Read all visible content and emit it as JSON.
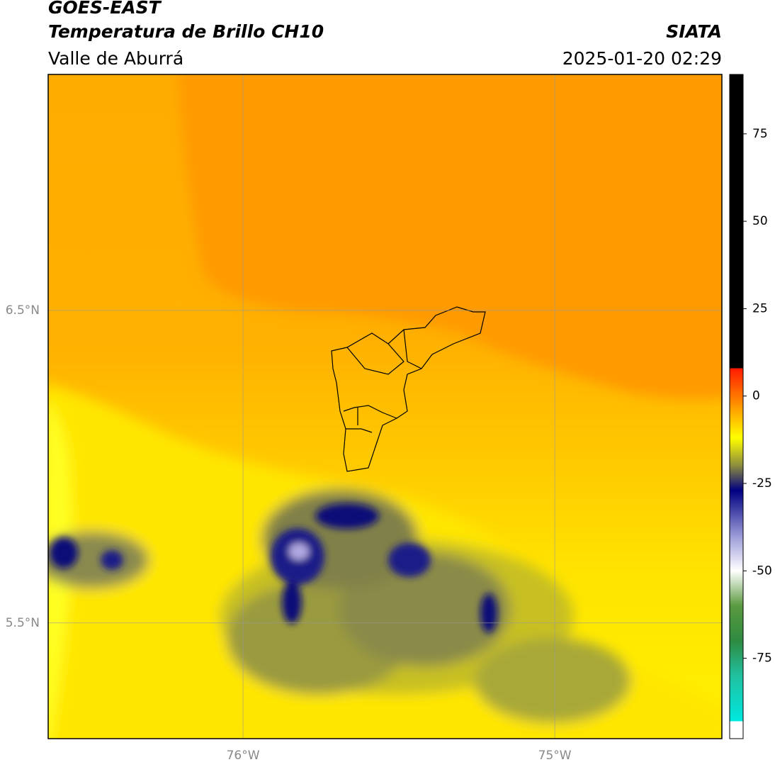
{
  "header": {
    "title": "GOES-EAST",
    "subtitle": "Temperatura de Brillo CH10",
    "region": "Valle de Aburrá",
    "source": "SIATA",
    "datetime": "2025-01-20 02:29"
  },
  "map": {
    "xlim": [
      -76.625,
      -74.464
    ],
    "ylim": [
      5.13,
      7.255
    ],
    "xticks": [
      {
        "value": -76,
        "label": "76°W"
      },
      {
        "value": -75,
        "label": "75°W"
      }
    ],
    "yticks": [
      {
        "value": 5.5,
        "label": "5.5°N"
      },
      {
        "value": 6.5,
        "label": "6.5°N"
      }
    ],
    "grid": true
  },
  "colorbar": {
    "lim": [
      -98,
      92
    ],
    "ticks": [
      -75,
      -50,
      -25,
      0,
      25,
      50,
      75
    ],
    "stops": [
      {
        "value": -98,
        "color": "#ffffff"
      },
      {
        "value": -93,
        "color": "#ffffff"
      },
      {
        "value": -93,
        "color": "#00e8e0"
      },
      {
        "value": -80,
        "color": "#20c0a0"
      },
      {
        "value": -70,
        "color": "#2e8b40"
      },
      {
        "value": -60,
        "color": "#5a9a40"
      },
      {
        "value": -50,
        "color": "#ffffff"
      },
      {
        "value": -40,
        "color": "#9a9ad8"
      },
      {
        "value": -27,
        "color": "#000080"
      },
      {
        "value": -20,
        "color": "#8a8a40"
      },
      {
        "value": -12,
        "color": "#ffff00"
      },
      {
        "value": -2,
        "color": "#ff8c00"
      },
      {
        "value": 8,
        "color": "#ff1a00"
      },
      {
        "value": 8,
        "color": "#000000"
      },
      {
        "value": 92,
        "color": "#000000"
      }
    ]
  }
}
